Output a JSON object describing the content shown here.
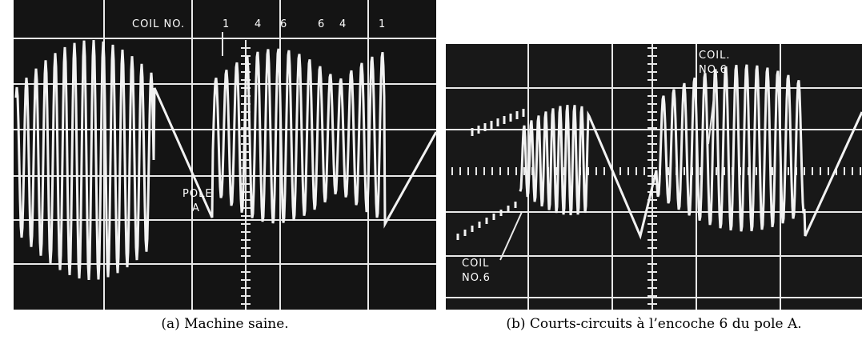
{
  "panels": [
    {
      "labels": [
        "COIL NO.",
        "1",
        "4",
        "6",
        "6",
        "4",
        "1",
        "POLE",
        "A"
      ],
      "caption": "(a) Machine saine."
    },
    {
      "labels": [
        "COIL.",
        "NO.6",
        "COIL",
        "NO.6"
      ],
      "caption": "(b) Courts-circuits à l’encoche 6 du pole A."
    }
  ]
}
